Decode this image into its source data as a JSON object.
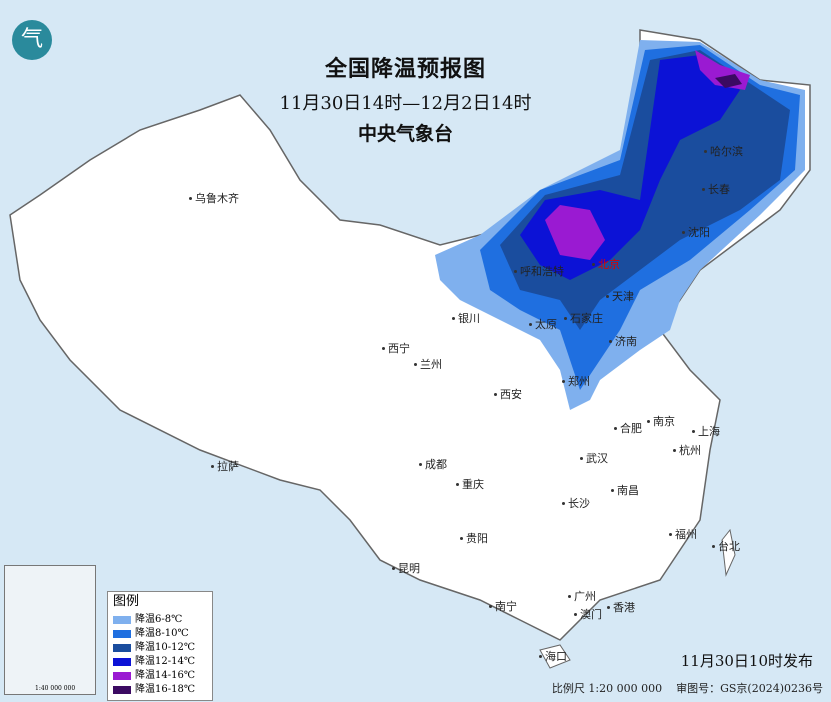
{
  "title": "全国降温预报图",
  "period": "11月30日14时—12月2日14时",
  "issuer": "中央气象台",
  "legend": {
    "title": "图例",
    "items": [
      {
        "label": "降温6-8℃",
        "color": "#7fb0ee"
      },
      {
        "label": "降温8-10℃",
        "color": "#1f6fe0"
      },
      {
        "label": "降温10-12℃",
        "color": "#1a4d9e"
      },
      {
        "label": "降温12-14℃",
        "color": "#0c12d6"
      },
      {
        "label": "降温14-16℃",
        "color": "#9a1ad2"
      },
      {
        "label": "降温16-18℃",
        "color": "#3b0a62"
      }
    ]
  },
  "cities": [
    "乌鲁木齐",
    "哈尔滨",
    "长春",
    "沈阳",
    "呼和浩特",
    "北京",
    "天津",
    "银川",
    "太原",
    "石家庄",
    "济南",
    "西宁",
    "兰州",
    "郑州",
    "西安",
    "合肥",
    "南京",
    "上海",
    "杭州",
    "武汉",
    "拉萨",
    "成都",
    "重庆",
    "南昌",
    "长沙",
    "福州",
    "台北",
    "贵阳",
    "昆明",
    "南宁",
    "广州",
    "澳门",
    "香港",
    "海口"
  ],
  "issued": "11月30日10时发布",
  "scale": "比例尺 1:20 000 000",
  "map_number": "审图号：GS京(2024)0236号",
  "inset_scale": "1:40 000 000",
  "logo_text": "气"
}
